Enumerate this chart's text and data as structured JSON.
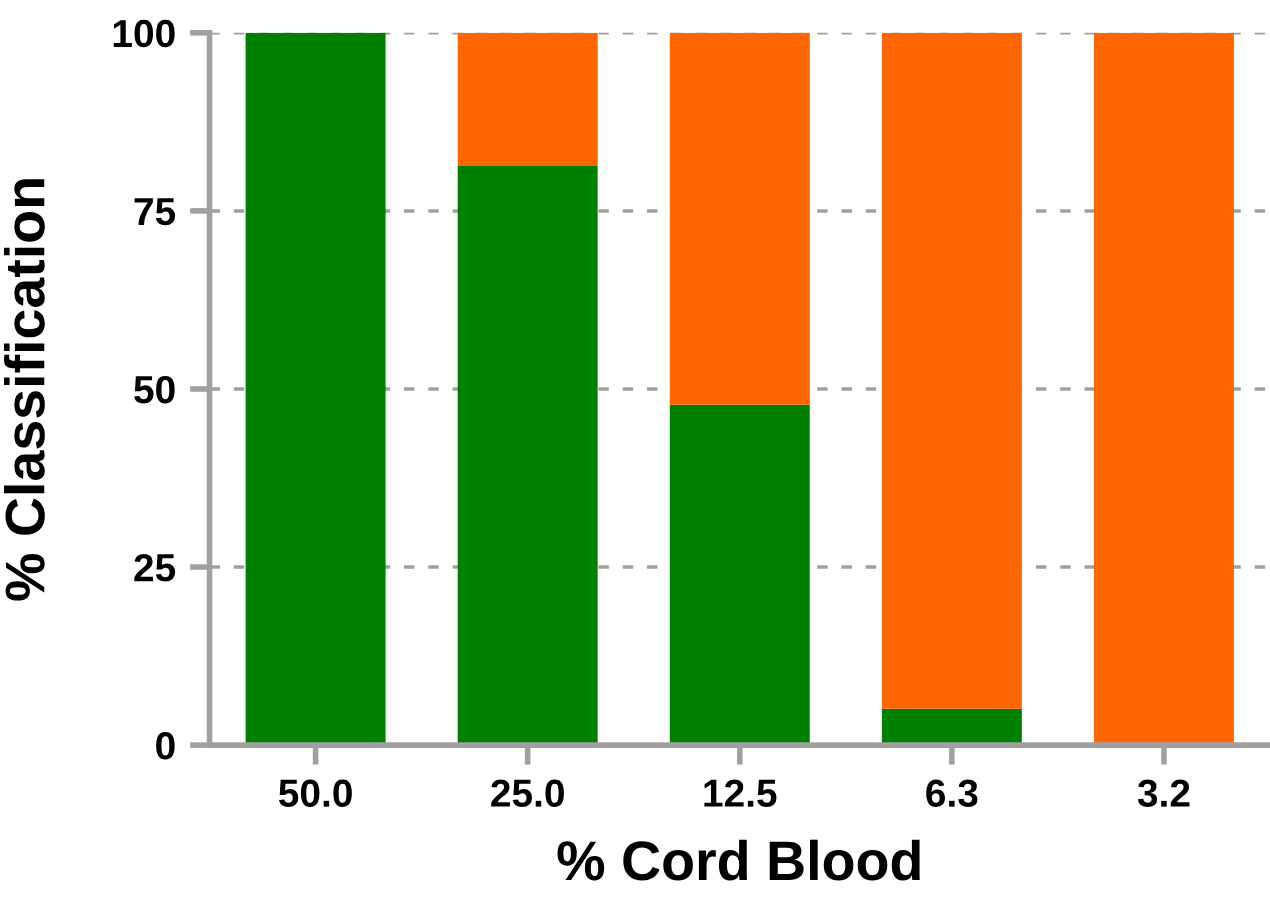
{
  "chart_data": {
    "type": "bar",
    "stacked": true,
    "xlabel": "% Cord Blood",
    "ylabel": "% Classification",
    "categories": [
      "50.0",
      "25.0",
      "12.5",
      "6.3",
      "3.2"
    ],
    "series": [
      {
        "color": "#008000",
        "values": [
          100,
          81.3,
          47.8,
          5.1,
          0
        ]
      },
      {
        "color": "#ff6600",
        "values": [
          0,
          18.7,
          52.2,
          94.9,
          100
        ]
      }
    ],
    "ylim": [
      0,
      100
    ],
    "yticks": [
      0,
      25,
      50,
      75,
      100
    ],
    "grid": "y",
    "legend": false
  }
}
